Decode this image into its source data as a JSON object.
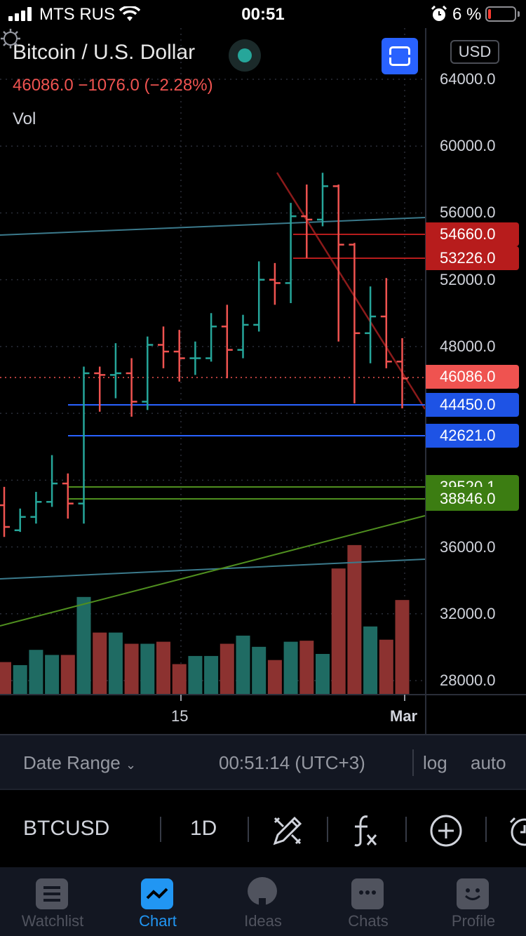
{
  "status": {
    "carrier": "MTS RUS",
    "time": "00:51",
    "battery": "6 %"
  },
  "header": {
    "title": "Bitcoin / U.S. Dollar",
    "quote": "46086.0  −1076.0 (−2.28%)",
    "vol_label": "Vol",
    "currency": "USD",
    "fullscreen_icon": "fullscreen-icon",
    "live_icon": "live-dot-icon"
  },
  "colors": {
    "up": "#26a69a",
    "down": "#ef5350",
    "upVol": "#1f6b63",
    "downVol": "#8c3230",
    "blue": "#2962ff",
    "green": "#4f8f1f",
    "red": "#b71c1c"
  },
  "chart_data": {
    "type": "ohlc",
    "symbol": "BTCUSD",
    "interval": "1D",
    "price_axis_labels": [
      "64000.0",
      "60000.0",
      "56000.0",
      "52000.0",
      "48000.0",
      "36000.0",
      "32000.0",
      "28000.0"
    ],
    "x_labels": [
      "15",
      "Mar"
    ],
    "last_price": "46086.0",
    "ylim": [
      26200,
      66000
    ],
    "bars": [
      {
        "o": 38500,
        "h": 39600,
        "l": 36600,
        "c": 37200,
        "v": 32
      },
      {
        "o": 37000,
        "h": 38300,
        "l": 36900,
        "c": 37800,
        "v": 29
      },
      {
        "o": 37800,
        "h": 39300,
        "l": 37400,
        "c": 38700,
        "v": 44
      },
      {
        "o": 38700,
        "h": 41500,
        "l": 38400,
        "c": 39800,
        "v": 39
      },
      {
        "o": 39800,
        "h": 40400,
        "l": 37700,
        "c": 38600,
        "v": 39
      },
      {
        "o": 38600,
        "h": 46800,
        "l": 37400,
        "c": 46400,
        "v": 96
      },
      {
        "o": 46400,
        "h": 46800,
        "l": 44100,
        "c": 46300,
        "v": 61
      },
      {
        "o": 46300,
        "h": 48200,
        "l": 44900,
        "c": 46400,
        "v": 61
      },
      {
        "o": 46400,
        "h": 47300,
        "l": 43800,
        "c": 44700,
        "v": 50
      },
      {
        "o": 44700,
        "h": 48600,
        "l": 44200,
        "c": 48100,
        "v": 50
      },
      {
        "o": 48100,
        "h": 49200,
        "l": 46700,
        "c": 47700,
        "v": 52
      },
      {
        "o": 47700,
        "h": 49000,
        "l": 45900,
        "c": 47300,
        "v": 30
      },
      {
        "o": 47300,
        "h": 48300,
        "l": 46300,
        "c": 47300,
        "v": 38
      },
      {
        "o": 47300,
        "h": 50000,
        "l": 47100,
        "c": 49200,
        "v": 38
      },
      {
        "o": 49200,
        "h": 50500,
        "l": 46100,
        "c": 47800,
        "v": 50
      },
      {
        "o": 47800,
        "h": 49900,
        "l": 47300,
        "c": 49300,
        "v": 58
      },
      {
        "o": 49300,
        "h": 53100,
        "l": 48900,
        "c": 52000,
        "v": 47
      },
      {
        "o": 52000,
        "h": 53000,
        "l": 50500,
        "c": 51800,
        "v": 34
      },
      {
        "o": 51800,
        "h": 56600,
        "l": 50600,
        "c": 55800,
        "v": 52
      },
      {
        "o": 55800,
        "h": 57700,
        "l": 53300,
        "c": 55600,
        "v": 53
      },
      {
        "o": 55600,
        "h": 58400,
        "l": 55200,
        "c": 57600,
        "v": 40
      },
      {
        "o": 57600,
        "h": 57700,
        "l": 48300,
        "c": 54100,
        "v": 124
      },
      {
        "o": 54100,
        "h": 54200,
        "l": 44600,
        "c": 48800,
        "v": 147
      },
      {
        "o": 48800,
        "h": 51600,
        "l": 47000,
        "c": 49800,
        "v": 67
      },
      {
        "o": 49800,
        "h": 52100,
        "l": 46700,
        "c": 47100,
        "v": 54
      },
      {
        "o": 47100,
        "h": 48500,
        "l": 44300,
        "c": 46086,
        "v": 93
      }
    ],
    "levels": [
      {
        "price": 54660,
        "label": "54660.0",
        "color": "red"
      },
      {
        "price": 53226,
        "label": "53226.0",
        "color": "red"
      },
      {
        "price": 44450,
        "label": "44450.0",
        "color": "blue"
      },
      {
        "price": 42621,
        "label": "42621.0",
        "color": "blue"
      },
      {
        "price": 39520,
        "label": "39520.1",
        "color": "green"
      },
      {
        "price": 38846,
        "label": "38846.0",
        "color": "green"
      }
    ]
  },
  "range_bar": {
    "date_range": "Date Range",
    "time": "00:51:14 (UTC+3)",
    "log": "log",
    "auto": "auto"
  },
  "toolbar": {
    "symbol": "BTCUSD",
    "interval": "1D"
  },
  "tabs": [
    {
      "label": "Watchlist",
      "icon": "watchlist-icon"
    },
    {
      "label": "Chart",
      "icon": "chart-icon"
    },
    {
      "label": "Ideas",
      "icon": "ideas-icon"
    },
    {
      "label": "Chats",
      "icon": "chats-icon"
    },
    {
      "label": "Profile",
      "icon": "profile-icon"
    }
  ]
}
